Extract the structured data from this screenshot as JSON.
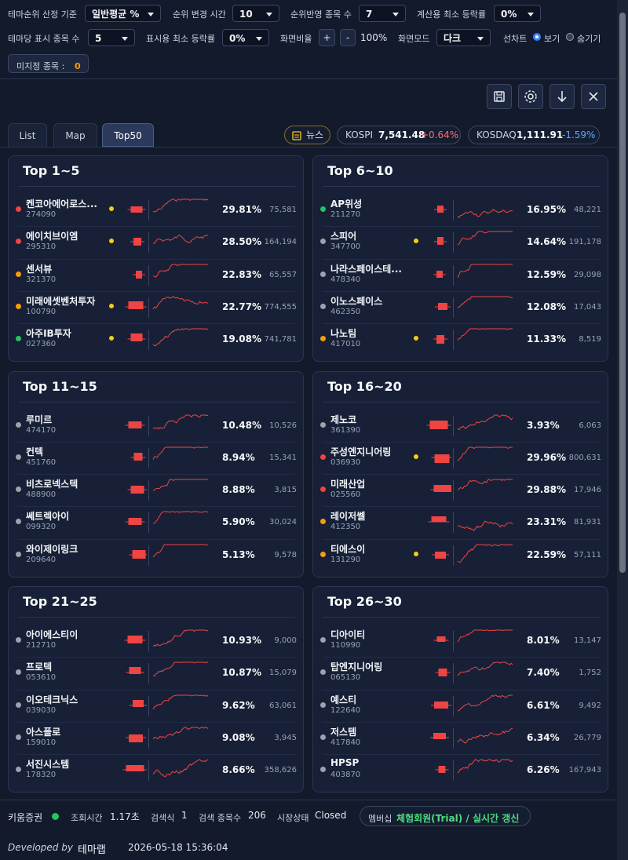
{
  "controls": [
    {
      "label": "테마순위 산정 기준",
      "value": "일반평균 %"
    },
    {
      "label": "순위 변경 시간",
      "value": "10"
    },
    {
      "label": "순위반영 종목 수",
      "value": "7"
    },
    {
      "label": "계산용 최소 등락률",
      "value": "0%"
    },
    {
      "label": "테마당 표시 종목 수",
      "value": "5"
    },
    {
      "label": "표시용 최소 등락률",
      "value": "0%"
    }
  ],
  "zoom": {
    "label": "화면비율",
    "plus": "+",
    "minus": "-",
    "value": "100%"
  },
  "mode": {
    "label": "화면모드",
    "value": "다크"
  },
  "line_chart": {
    "label": "선차트",
    "options": [
      "보기",
      "숨기기"
    ],
    "selected": 0
  },
  "unassigned": {
    "label": "미지정 종목 : ",
    "count": "0"
  },
  "tabs": {
    "items": [
      "List",
      "Map",
      "Top50"
    ],
    "active": 2
  },
  "news": "뉴스",
  "indices": [
    {
      "name": "KOSPI",
      "value": "7,541.48",
      "change": "+0.64%",
      "color": "#f87171"
    },
    {
      "name": "KOSDAQ",
      "value": "1,111.91",
      "change": "-1.59%",
      "color": "#60a5fa"
    }
  ],
  "groups": [
    {
      "title": "Top 1~5",
      "stocks": [
        {
          "name": "켄코아에어로스...",
          "code": "274090",
          "change": "29.81%",
          "volume": "75,581",
          "dot": "#ef4444",
          "marker": "#facc15"
        },
        {
          "name": "에이치브이엠",
          "code": "295310",
          "change": "28.50%",
          "volume": "164,194",
          "dot": "#ef4444",
          "marker": "#facc15"
        },
        {
          "name": "센서뷰",
          "code": "321370",
          "change": "22.83%",
          "volume": "65,557",
          "dot": "#f59e0b"
        },
        {
          "name": "미래에셋벤처투자",
          "code": "100790",
          "change": "22.77%",
          "volume": "774,555",
          "dot": "#f59e0b",
          "marker": "#facc15"
        },
        {
          "name": "아주IB투자",
          "code": "027360",
          "change": "19.08%",
          "volume": "741,781",
          "dot": "#22c55e",
          "marker": "#facc15"
        }
      ]
    },
    {
      "title": "Top 6~10",
      "stocks": [
        {
          "name": "AP위성",
          "code": "211270",
          "change": "16.95%",
          "volume": "48,221",
          "dot": "#22c55e"
        },
        {
          "name": "스피어",
          "code": "347700",
          "change": "14.64%",
          "volume": "191,178",
          "dot": "#9ca3af",
          "marker": "#facc15"
        },
        {
          "name": "나라스페이스테...",
          "code": "478340",
          "change": "12.59%",
          "volume": "29,098",
          "dot": "#9ca3af"
        },
        {
          "name": "이노스페이스",
          "code": "462350",
          "change": "12.08%",
          "volume": "17,043",
          "dot": "#9ca3af"
        },
        {
          "name": "나노팀",
          "code": "417010",
          "change": "11.33%",
          "volume": "8,519",
          "dot": "#f59e0b",
          "marker": "#facc15"
        }
      ]
    },
    {
      "title": "Top 11~15",
      "stocks": [
        {
          "name": "루미르",
          "code": "474170",
          "change": "10.48%",
          "volume": "10,526",
          "dot": "#9ca3af"
        },
        {
          "name": "컨텍",
          "code": "451760",
          "change": "8.94%",
          "volume": "15,341",
          "dot": "#9ca3af"
        },
        {
          "name": "비츠로넥스텍",
          "code": "488900",
          "change": "8.88%",
          "volume": "3,815",
          "dot": "#9ca3af"
        },
        {
          "name": "쎄트렉아이",
          "code": "099320",
          "change": "5.90%",
          "volume": "30,024",
          "dot": "#9ca3af"
        },
        {
          "name": "와이제이링크",
          "code": "209640",
          "change": "5.13%",
          "volume": "9,578",
          "dot": "#9ca3af"
        }
      ]
    },
    {
      "title": "Top 16~20",
      "stocks": [
        {
          "name": "제노코",
          "code": "361390",
          "change": "3.93%",
          "volume": "6,063",
          "dot": "#9ca3af"
        },
        {
          "name": "주성엔지니어링",
          "code": "036930",
          "change": "29.96%",
          "volume": "800,631",
          "dot": "#ef4444",
          "marker": "#facc15"
        },
        {
          "name": "미래산업",
          "code": "025560",
          "change": "29.88%",
          "volume": "17,946",
          "dot": "#ef4444"
        },
        {
          "name": "레이저쎌",
          "code": "412350",
          "change": "23.31%",
          "volume": "81,931",
          "dot": "#f59e0b"
        },
        {
          "name": "티에스이",
          "code": "131290",
          "change": "22.59%",
          "volume": "57,111",
          "dot": "#f59e0b",
          "marker": "#facc15"
        }
      ]
    },
    {
      "title": "Top 21~25",
      "stocks": [
        {
          "name": "아이에스티이",
          "code": "212710",
          "change": "10.93%",
          "volume": "9,000",
          "dot": "#9ca3af"
        },
        {
          "name": "프로텍",
          "code": "053610",
          "change": "10.87%",
          "volume": "15,079",
          "dot": "#9ca3af"
        },
        {
          "name": "이오테크닉스",
          "code": "039030",
          "change": "9.62%",
          "volume": "63,061",
          "dot": "#9ca3af"
        },
        {
          "name": "아스플로",
          "code": "159010",
          "change": "9.08%",
          "volume": "3,945",
          "dot": "#9ca3af"
        },
        {
          "name": "서진시스템",
          "code": "178320",
          "change": "8.66%",
          "volume": "358,626",
          "dot": "#9ca3af"
        }
      ]
    },
    {
      "title": "Top 26~30",
      "stocks": [
        {
          "name": "디아이티",
          "code": "110990",
          "change": "8.01%",
          "volume": "13,147",
          "dot": "#9ca3af"
        },
        {
          "name": "탑엔지니어링",
          "code": "065130",
          "change": "7.40%",
          "volume": "1,752",
          "dot": "#9ca3af"
        },
        {
          "name": "예스티",
          "code": "122640",
          "change": "6.61%",
          "volume": "9,492",
          "dot": "#9ca3af"
        },
        {
          "name": "저스템",
          "code": "417840",
          "change": "6.34%",
          "volume": "26,779",
          "dot": "#9ca3af"
        },
        {
          "name": "HPSP",
          "code": "403870",
          "change": "6.26%",
          "volume": "167,943",
          "dot": "#9ca3af"
        }
      ]
    }
  ],
  "footer": {
    "broker": "키움증권",
    "stats": [
      {
        "label": "조회시간",
        "value": "1.17초"
      },
      {
        "label": "검색식",
        "value": "1"
      },
      {
        "label": "검색 종목수",
        "value": "206"
      },
      {
        "label": "시장상태",
        "value": "Closed"
      }
    ],
    "membership": {
      "label": "멤버십",
      "value": "체험회원(Trial) / 실시간 갱신"
    },
    "developed_by": "Developed by",
    "developer": "테마랩",
    "timestamp": "2026-05-18 15:36:04"
  }
}
